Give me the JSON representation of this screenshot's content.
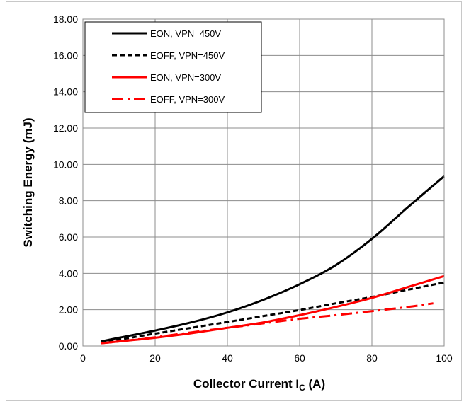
{
  "chart_data": {
    "type": "line",
    "xlabel_main": "Collector Current I",
    "xlabel_sub": "C",
    "xlabel_unit": " (A)",
    "ylabel": "Switching Energy (mJ)",
    "xlim": [
      0,
      100
    ],
    "ylim": [
      0,
      18
    ],
    "x_ticks": [
      "0",
      "20",
      "40",
      "60",
      "80",
      "100"
    ],
    "y_ticks": [
      "0.00",
      "2.00",
      "4.00",
      "6.00",
      "8.00",
      "10.00",
      "12.00",
      "14.00",
      "16.00",
      "18.00"
    ],
    "grid": true,
    "legend_position": "top-left",
    "series": [
      {
        "name": "EON, VPN=450V",
        "color": "#000000",
        "style": "solid",
        "x": [
          5,
          10,
          20,
          30,
          40,
          50,
          60,
          70,
          80,
          90,
          100
        ],
        "y": [
          0.25,
          0.45,
          0.85,
          1.3,
          1.85,
          2.55,
          3.4,
          4.45,
          5.9,
          7.65,
          9.35
        ]
      },
      {
        "name": "EOFF, VPN=450V",
        "color": "#000000",
        "style": "dashed",
        "x": [
          5,
          10,
          20,
          30,
          40,
          50,
          60,
          70,
          80,
          90,
          100
        ],
        "y": [
          0.2,
          0.35,
          0.68,
          1.0,
          1.32,
          1.65,
          1.98,
          2.35,
          2.7,
          3.1,
          3.5
        ]
      },
      {
        "name": "EON, VPN=300V",
        "color": "#ff0000",
        "style": "solid",
        "x": [
          5,
          10,
          20,
          30,
          40,
          50,
          60,
          70,
          80,
          90,
          100
        ],
        "y": [
          0.15,
          0.25,
          0.45,
          0.7,
          1.0,
          1.3,
          1.7,
          2.15,
          2.65,
          3.25,
          3.85
        ]
      },
      {
        "name": "EOFF, VPN=300V",
        "color": "#ff0000",
        "style": "dashdot",
        "x": [
          5,
          10,
          20,
          30,
          40,
          50,
          60,
          70,
          80,
          90,
          97
        ],
        "y": [
          0.15,
          0.25,
          0.48,
          0.75,
          1.0,
          1.25,
          1.5,
          1.7,
          1.92,
          2.15,
          2.35
        ]
      }
    ]
  }
}
